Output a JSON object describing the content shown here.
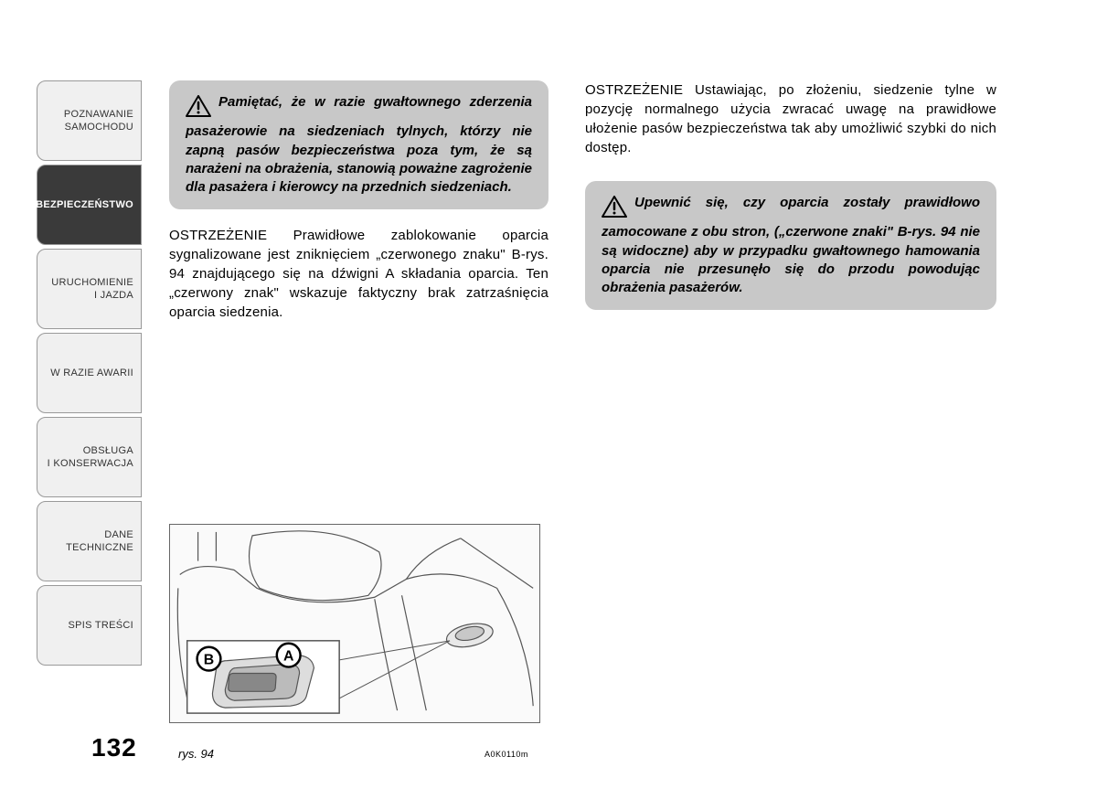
{
  "sidebar": {
    "tabs": [
      {
        "label": "POZNAWANIE\nSAMOCHODU",
        "active": false
      },
      {
        "label": "BEZPIECZEŃSTWO",
        "active": true
      },
      {
        "label": "URUCHOMIENIE\nI JAZDA",
        "active": false
      },
      {
        "label": "W RAZIE AWARII",
        "active": false
      },
      {
        "label": "OBSŁUGA\nI KONSERWACJA",
        "active": false
      },
      {
        "label": "DANE\nTECHNICZNE",
        "active": false
      },
      {
        "label": "SPIS TREŚCI",
        "active": false
      }
    ]
  },
  "page_number": "132",
  "left_column": {
    "warning1": "Pamiętać, że w razie gwałtownego zderzenia pasażerowie na siedzeniach tylnych, którzy nie zapną pasów bezpieczeństwa poza tym, że są narażeni na obrażenia, stanowią poważne zagrożenie dla pasażera i kierowcy na przednich siedzeniach.",
    "body1": "OSTRZEŻENIE Prawidłowe zablokowanie oparcia sygnalizowane jest zniknięciem „czerwonego znaku\" B-rys. 94 znajdującego się na dźwigni A składania oparcia. Ten „czerwony znak\" wskazuje faktyczny brak zatrzaśnięcia oparcia siedzenia."
  },
  "right_column": {
    "body1": "OSTRZEŻENIE Ustawiając, po złożeniu, siedzenie tylne w pozycję normalnego użycia zwracać uwagę na prawidłowe ułożenie pasów bezpieczeństwa tak aby umożliwić szybki do nich dostęp.",
    "warning1": "Upewnić się, czy oparcia zostały prawidłowo zamocowane z obu stron, („czerwone znaki\" B-rys. 94 nie są widoczne) aby w przypadku gwałtownego hamowania oparcia nie przesunęło się do przodu powodując obrażenia pasażerów."
  },
  "figure": {
    "caption": "rys. 94",
    "code": "A0K0110m",
    "labels": {
      "A": "A",
      "B": "B"
    }
  },
  "colors": {
    "tab_bg": "#f0f0f0",
    "tab_active_bg": "#3a3a3a",
    "tab_border": "#999999",
    "warning_bg": "#c8c8c8",
    "text": "#000000",
    "figure_border": "#666666"
  }
}
